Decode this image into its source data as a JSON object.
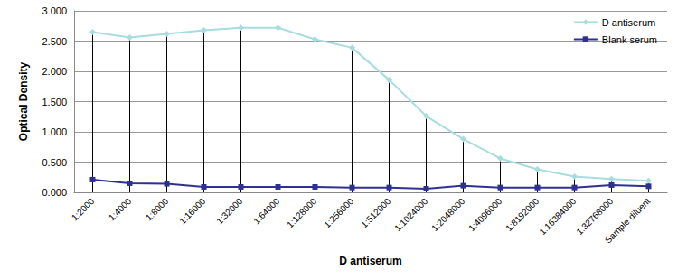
{
  "chart_data": {
    "type": "line",
    "x_label": "D antiserum",
    "y_label": "Optical Density",
    "categories": [
      "1:2000",
      "1:4000",
      "1:8000",
      "1:16000",
      "1:32000",
      "1:64000",
      "1:128000",
      "1:256000",
      "1:512000",
      "1:1024000",
      "1:2048000",
      "1:4096000",
      "1:8192000",
      "1:16384000",
      "1:32768000",
      "Sample diluent"
    ],
    "series": [
      {
        "name": "D antiserum",
        "color": "#a6dde0",
        "marker": "diamond",
        "values": [
          2.65,
          2.56,
          2.62,
          2.68,
          2.72,
          2.72,
          2.53,
          2.39,
          1.86,
          1.26,
          0.88,
          0.56,
          0.38,
          0.26,
          0.22,
          0.19
        ]
      },
      {
        "name": "Blank serum",
        "color": "#2e3192",
        "marker": "square",
        "values": [
          0.21,
          0.15,
          0.14,
          0.09,
          0.09,
          0.09,
          0.09,
          0.08,
          0.08,
          0.06,
          0.11,
          0.08,
          0.08,
          0.08,
          0.12,
          0.1
        ]
      }
    ],
    "ylim": [
      0,
      3
    ],
    "yticks": [
      {
        "value": 0,
        "label": "0.000"
      },
      {
        "value": 0.5,
        "label": "0.500"
      },
      {
        "value": 1,
        "label": "1.000"
      },
      {
        "value": 1.5,
        "label": "1.500"
      },
      {
        "value": 2,
        "label": "2.000"
      },
      {
        "value": 2.5,
        "label": "2.500"
      },
      {
        "value": 3,
        "label": "3.000"
      }
    ],
    "grid": true,
    "legend": "upper right"
  }
}
